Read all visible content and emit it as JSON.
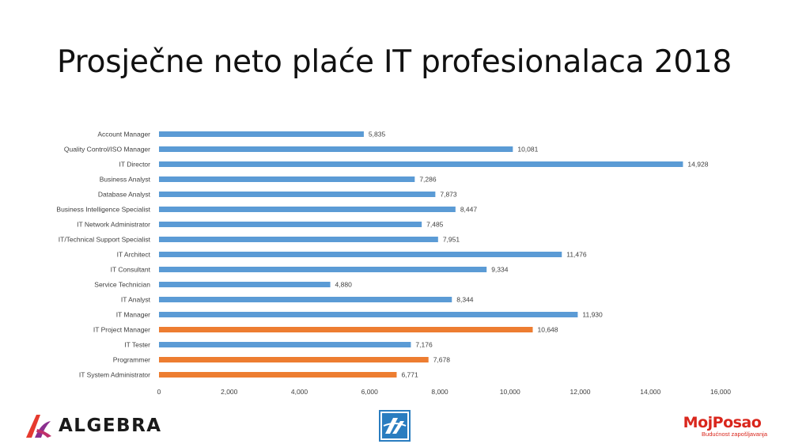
{
  "slide": {
    "title": "Prosječne neto plaće IT profesionalaca 2018"
  },
  "chart_data": {
    "type": "bar",
    "orientation": "horizontal",
    "title": "",
    "xlabel": "",
    "ylabel": "",
    "xlim": [
      0,
      16000
    ],
    "ticks": [
      0,
      2000,
      4000,
      6000,
      8000,
      10000,
      12000,
      14000,
      16000
    ],
    "tick_labels": [
      "0",
      "2,000",
      "4,000",
      "6,000",
      "8,000",
      "10,000",
      "12,000",
      "14,000",
      "16,000"
    ],
    "grid": false,
    "legend": "none",
    "colors": {
      "default": "#5b9bd5",
      "highlight": "#ed7d31"
    },
    "categories": [
      "Account Manager",
      "Quality Control/ISO Manager",
      "IT Director",
      "Business Analyst",
      "Database Analyst",
      "Business Intelligence Specialist",
      "IT Network Administrator",
      "IT/Technical Support Specialist",
      "IT Architect",
      "IT Consultant",
      "Service Technician",
      "IT Analyst",
      "IT Manager",
      "IT Project Manager",
      "IT Tester",
      "Programmer",
      "IT System Administrator"
    ],
    "values": [
      5835,
      10081,
      14928,
      7286,
      7873,
      8447,
      7485,
      7951,
      11476,
      9334,
      4880,
      8344,
      11930,
      10648,
      7176,
      7678,
      6771
    ],
    "value_labels": [
      "5,835",
      "10,081",
      "14,928",
      "7,286",
      "7,873",
      "8,447",
      "7,485",
      "7,951",
      "11,476",
      "9,334",
      "4,880",
      "8,344",
      "11,930",
      "10,648",
      "7,176",
      "7,678",
      "6,771"
    ],
    "highlighted": [
      false,
      false,
      false,
      false,
      false,
      false,
      false,
      false,
      false,
      false,
      false,
      false,
      false,
      true,
      false,
      true,
      true
    ]
  },
  "logos": {
    "algebra": {
      "text": "ALGEBRA",
      "colors": [
        "#e63a2e",
        "#8b2f8f"
      ]
    },
    "center": {
      "icon": "blue-s-emblem-icon",
      "color": "#2a7dc0"
    },
    "mojposao": {
      "name": "MojPosao",
      "tagline": "Budućnost zapošljavanja",
      "color": "#d9261c"
    }
  }
}
